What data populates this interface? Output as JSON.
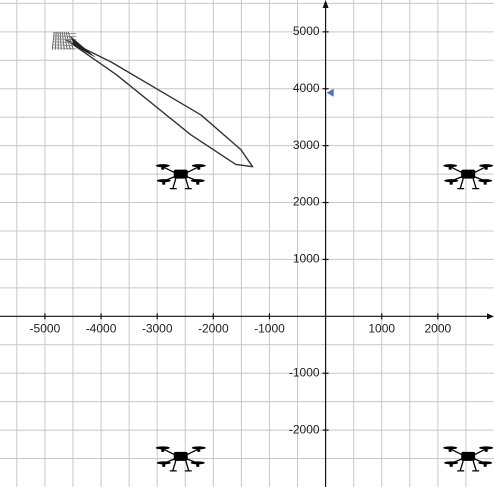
{
  "chart_data": {
    "type": "scatter",
    "xlim": [
      -5800,
      3000
    ],
    "ylim": [
      -3000,
      5560
    ],
    "xticks": [
      -5000,
      -4000,
      -3000,
      -2000,
      -1000,
      1000,
      2000
    ],
    "yticks": [
      -2000,
      -1000,
      1000,
      2000,
      3000,
      4000,
      5000
    ],
    "x_minor_ticks": [
      -5500,
      -5000,
      -4500,
      -4000,
      -3500,
      -3000,
      -2500,
      -2000,
      -1500,
      -1000,
      -500,
      500,
      1000,
      1500,
      2000,
      2500
    ],
    "y_minor_ticks": [
      -2500,
      -2000,
      -1500,
      -1000,
      -500,
      500,
      1000,
      1500,
      2000,
      2500,
      3000,
      3500,
      4000,
      4500,
      5000,
      5500
    ],
    "grid": true,
    "series": [
      {
        "marker": "drone",
        "color": "#000000",
        "x": [
          -2580,
          2540,
          -2580,
          2540
        ],
        "y": [
          2490,
          2490,
          -2470,
          -2470
        ]
      },
      {
        "marker": "triangle",
        "color": "#4472c4",
        "x": [
          90
        ],
        "y": [
          3930
        ]
      },
      {
        "marker": "line",
        "color": "#333333",
        "x": [
          -4620,
          -3820,
          -2220,
          -1510,
          -1300,
          -1600,
          -2400,
          -3730,
          -4620
        ],
        "y": [
          4860,
          4470,
          3540,
          2930,
          2630,
          2670,
          3190,
          4250,
          4860
        ]
      }
    ]
  }
}
